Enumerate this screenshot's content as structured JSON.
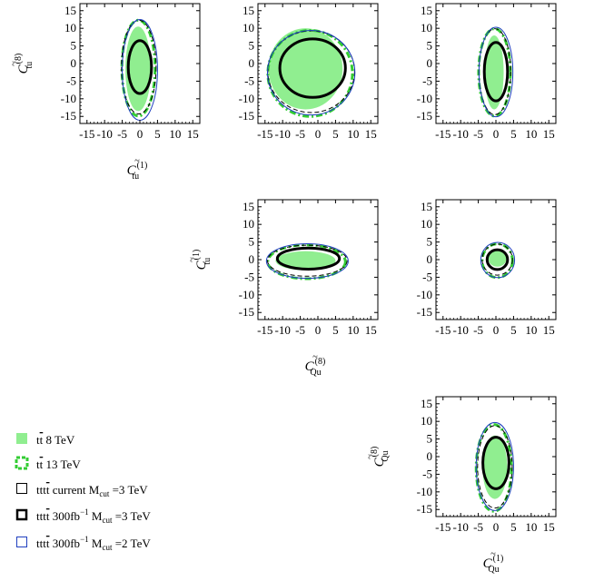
{
  "colors": {
    "tt8_fill": "#90ee90",
    "tt13_stroke": "#33cc33",
    "current_stroke": "#000000",
    "proj3_stroke": "#000000",
    "proj2_stroke": "#1f3fbf"
  },
  "chart_data": {
    "type": "contour",
    "shared_ticks": [
      "-15",
      "-10",
      "-5",
      "0",
      "5",
      "10",
      "15"
    ],
    "legend": [
      {
        "key": "tt8",
        "label_pre": "t",
        "label_post": " 8 TeV"
      },
      {
        "key": "tt13",
        "label_pre": "t",
        "label_post": " 13 TeV"
      },
      {
        "key": "current",
        "label_pre": "ttt",
        "label_post": " current M",
        "sub": "cut",
        "tail": " =3 TeV"
      },
      {
        "key": "proj3",
        "label_pre": "ttt",
        "label_post": " 300fb",
        "sup": "−1",
        "post2": " M",
        "sub": "cut",
        "tail": " =3 TeV"
      },
      {
        "key": "proj2",
        "label_pre": "ttt",
        "label_post": " 300fb",
        "sup": "−1",
        "post2": " M",
        "sub": "cut",
        "tail": " =2 TeV"
      }
    ],
    "panels": [
      {
        "id": "p11",
        "xlim": [
          -17,
          17
        ],
        "ylim": [
          -17,
          17
        ],
        "xlabel": {
          "base": "C",
          "sup": "(1)",
          "sub": "tu"
        },
        "ylabel": {
          "base": "C",
          "sup": "(8)",
          "sub": "tu"
        },
        "contours": {
          "tt8": {
            "cx": -0.5,
            "cy": -1.5,
            "rx": 3.6,
            "ry": 12.0
          },
          "tt13": {
            "cx": -0.4,
            "cy": -1.3,
            "rx": 4.7,
            "ry": 13.6
          },
          "current": {
            "cx": -0.3,
            "cy": -1.0,
            "rx": 4.9,
            "ry": 13.3
          },
          "proj3": {
            "cx": 0.0,
            "cy": -1.0,
            "rx": 3.3,
            "ry": 7.5
          },
          "proj2": {
            "cx": 0.0,
            "cy": -1.8,
            "rx": 5.0,
            "ry": 14.3
          }
        }
      },
      {
        "id": "p12",
        "xlim": [
          -17,
          17
        ],
        "ylim": [
          -17,
          17
        ],
        "xlabel": null,
        "ylabel": null,
        "contours": {
          "tt8": {
            "cx": -3.5,
            "cy": -1.5,
            "rx": 10.5,
            "ry": 11.5
          },
          "tt13": {
            "cx": -2.2,
            "cy": -2.8,
            "rx": 12.0,
            "ry": 12.2
          },
          "current": {
            "cx": -1.9,
            "cy": -2.3,
            "rx": 12.3,
            "ry": 11.6
          },
          "proj3": {
            "cx": -1.5,
            "cy": -1.3,
            "rx": 9.3,
            "ry": 8.3
          },
          "proj2": {
            "cx": -1.9,
            "cy": -2.6,
            "rx": 12.4,
            "ry": 12.0
          }
        }
      },
      {
        "id": "p13",
        "xlim": [
          -17,
          17
        ],
        "ylim": [
          -17,
          17
        ],
        "xlabel": null,
        "ylabel": null,
        "contours": {
          "tt8": {
            "cx": -0.5,
            "cy": -2.5,
            "rx": 2.7,
            "ry": 10.5
          },
          "tt13": {
            "cx": -0.4,
            "cy": -2.5,
            "rx": 4.5,
            "ry": 12.4
          },
          "current": {
            "cx": -0.3,
            "cy": -2.3,
            "rx": 4.5,
            "ry": 12.2
          },
          "proj3": {
            "cx": 0.0,
            "cy": -2.3,
            "rx": 3.3,
            "ry": 8.3
          },
          "proj2": {
            "cx": 0.0,
            "cy": -2.4,
            "rx": 4.8,
            "ry": 12.7
          }
        }
      },
      {
        "id": "p22",
        "xlim": [
          -17,
          17
        ],
        "ylim": [
          -17,
          17
        ],
        "xlabel": {
          "base": "C",
          "sup": "(8)",
          "sub": "Qu"
        },
        "ylabel": {
          "base": "C",
          "sup": "(1)",
          "sub": "tu"
        },
        "contours": {
          "tt8": {
            "cx": -3.5,
            "cy": -0.3,
            "rx": 8.5,
            "ry": 2.7
          },
          "tt13": {
            "cx": -3.2,
            "cy": -0.6,
            "rx": 11.0,
            "ry": 4.8
          },
          "current": {
            "cx": -3.0,
            "cy": -0.3,
            "rx": 11.3,
            "ry": 4.4
          },
          "proj3": {
            "cx": -2.7,
            "cy": 0.3,
            "rx": 8.8,
            "ry": 3.0
          },
          "proj2": {
            "cx": -3.0,
            "cy": -0.4,
            "rx": 11.6,
            "ry": 4.9
          }
        }
      },
      {
        "id": "p23",
        "xlim": [
          -17,
          17
        ],
        "ylim": [
          -17,
          17
        ],
        "xlabel": null,
        "ylabel": null,
        "contours": {
          "tt8": {
            "cx": 0.4,
            "cy": 0.3,
            "rx": 2.6,
            "ry": 2.3
          },
          "tt13": {
            "cx": 0.4,
            "cy": -0.3,
            "rx": 4.3,
            "ry": 4.8
          },
          "current": {
            "cx": 0.4,
            "cy": 0.0,
            "rx": 4.3,
            "ry": 4.4
          },
          "proj3": {
            "cx": 0.4,
            "cy": 0.0,
            "rx": 2.9,
            "ry": 2.8
          },
          "proj2": {
            "cx": 0.5,
            "cy": -0.1,
            "rx": 4.8,
            "ry": 5.0
          }
        }
      },
      {
        "id": "p33",
        "xlim": [
          -17,
          17
        ],
        "ylim": [
          -17,
          17
        ],
        "xlabel": {
          "base": "C",
          "sup": "(1)",
          "sub": "Qu"
        },
        "ylabel": {
          "base": "C",
          "sup": "(8)",
          "sub": "Qu"
        },
        "contours": {
          "tt8": {
            "cx": -0.3,
            "cy": -3.0,
            "rx": 3.5,
            "ry": 9.0
          },
          "tt13": {
            "cx": -0.6,
            "cy": -3.2,
            "rx": 5.0,
            "ry": 12.3
          },
          "current": {
            "cx": -0.3,
            "cy": -2.9,
            "rx": 4.9,
            "ry": 11.7
          },
          "proj3": {
            "cx": 0.0,
            "cy": -1.8,
            "rx": 3.7,
            "ry": 7.3
          },
          "proj2": {
            "cx": -0.3,
            "cy": -2.8,
            "rx": 5.3,
            "ry": 12.5
          }
        }
      }
    ]
  }
}
